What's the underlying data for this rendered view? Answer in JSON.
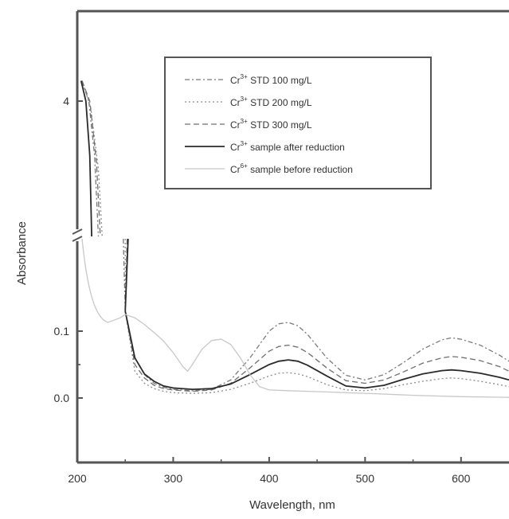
{
  "chart_data": {
    "type": "line",
    "title": "",
    "xlabel": "Wavelength, nm",
    "ylabel": "Absorbance",
    "xlim": [
      200,
      650
    ],
    "x_ticks": [
      "200",
      "300",
      "400",
      "500",
      "600"
    ],
    "y_ticks_lower": [
      "0.0",
      "0.1"
    ],
    "y_ticks_upper": [
      "4"
    ],
    "axis_break": "between lower and upper y ranges",
    "ylim_lower": [
      -0.05,
      0.135
    ],
    "ylim_upper": [
      2.0,
      4.4
    ],
    "grid": false,
    "legend_position": "top-right",
    "colors": {
      "axis": "#555555",
      "std100": "#7a7a7a",
      "std200": "#8c8c8c",
      "std300": "#6f6f6f",
      "after": "#2a2a2a",
      "before": "#c8c8c8"
    },
    "series": [
      {
        "name_main": "Cr",
        "name_sup": "3+",
        "name_rest": " STD 100 mg/L",
        "style": "dash-dot",
        "color_key": "std100",
        "x": [
          250,
          260,
          270,
          280,
          290,
          300,
          320,
          340,
          360,
          380,
          400,
          410,
          420,
          430,
          440,
          460,
          480,
          500,
          520,
          540,
          560,
          580,
          590,
          600,
          620,
          640,
          650
        ],
        "y": [
          0.13,
          0.06,
          0.035,
          0.022,
          0.016,
          0.013,
          0.011,
          0.013,
          0.027,
          0.06,
          0.1,
          0.111,
          0.113,
          0.108,
          0.095,
          0.06,
          0.034,
          0.027,
          0.035,
          0.053,
          0.073,
          0.087,
          0.09,
          0.088,
          0.079,
          0.064,
          0.055
        ]
      },
      {
        "name_main": "Cr",
        "name_sup": "3+",
        "name_rest": " STD 200 mg/L",
        "style": "dotted",
        "color_key": "std200",
        "x": [
          250,
          260,
          270,
          280,
          290,
          300,
          320,
          340,
          360,
          380,
          400,
          410,
          420,
          430,
          440,
          460,
          480,
          500,
          520,
          540,
          560,
          580,
          590,
          600,
          620,
          640,
          650
        ],
        "y": [
          0.13,
          0.04,
          0.022,
          0.014,
          0.01,
          0.008,
          0.007,
          0.008,
          0.013,
          0.022,
          0.033,
          0.037,
          0.038,
          0.036,
          0.032,
          0.02,
          0.012,
          0.011,
          0.014,
          0.02,
          0.025,
          0.029,
          0.03,
          0.029,
          0.025,
          0.02,
          0.017
        ]
      },
      {
        "name_main": "Cr",
        "name_sup": "3+",
        "name_rest": " STD 300 mg/L",
        "style": "dashed",
        "color_key": "std300",
        "x": [
          250,
          260,
          270,
          280,
          290,
          300,
          320,
          340,
          360,
          380,
          400,
          410,
          420,
          430,
          440,
          460,
          480,
          500,
          520,
          540,
          560,
          580,
          590,
          600,
          620,
          640,
          650
        ],
        "y": [
          0.13,
          0.05,
          0.03,
          0.019,
          0.014,
          0.012,
          0.01,
          0.012,
          0.022,
          0.045,
          0.07,
          0.077,
          0.079,
          0.076,
          0.068,
          0.045,
          0.026,
          0.022,
          0.027,
          0.039,
          0.052,
          0.06,
          0.062,
          0.061,
          0.056,
          0.047,
          0.04
        ]
      },
      {
        "name_main": "Cr",
        "name_sup": "3+",
        "name_rest": " sample after reduction",
        "style": "solid",
        "color_key": "after",
        "x": [
          250,
          260,
          270,
          280,
          290,
          300,
          320,
          340,
          360,
          380,
          400,
          410,
          420,
          430,
          440,
          460,
          480,
          500,
          520,
          540,
          560,
          580,
          590,
          600,
          620,
          640,
          650
        ],
        "y": [
          0.13,
          0.06,
          0.036,
          0.025,
          0.018,
          0.015,
          0.013,
          0.014,
          0.021,
          0.035,
          0.05,
          0.055,
          0.057,
          0.055,
          0.049,
          0.033,
          0.018,
          0.015,
          0.019,
          0.028,
          0.036,
          0.041,
          0.042,
          0.041,
          0.037,
          0.031,
          0.027
        ]
      },
      {
        "name_main": "Cr",
        "name_sup": "6+",
        "name_rest": " sample before reduction",
        "style": "solid",
        "color_key": "before",
        "x": [
          245,
          250,
          260,
          270,
          280,
          290,
          300,
          310,
          315,
          320,
          330,
          340,
          350,
          360,
          370,
          380,
          390,
          400,
          420,
          440,
          460,
          480,
          500,
          550,
          600,
          650
        ],
        "y": [
          0.12,
          0.125,
          0.12,
          0.11,
          0.098,
          0.085,
          0.068,
          0.047,
          0.04,
          0.05,
          0.073,
          0.086,
          0.088,
          0.08,
          0.06,
          0.035,
          0.017,
          0.012,
          0.011,
          0.01,
          0.009,
          0.008,
          0.007,
          0.004,
          0.002,
          0.001
        ]
      }
    ]
  }
}
